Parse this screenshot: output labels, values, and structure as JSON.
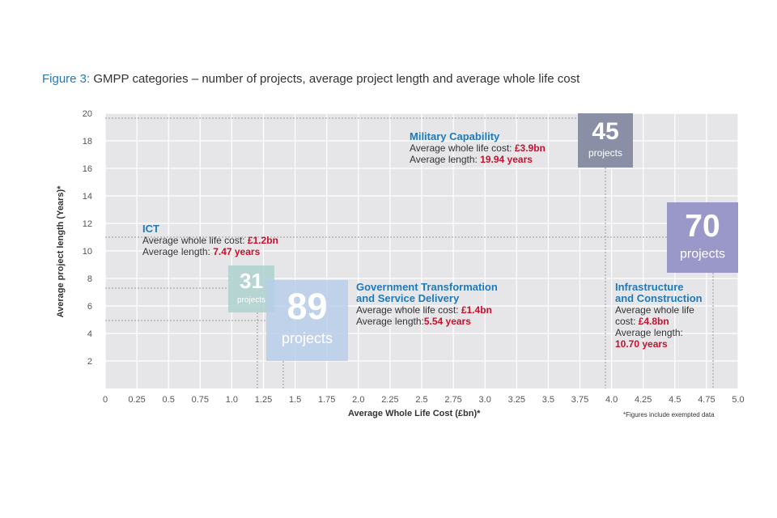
{
  "title": {
    "prefix": "Figure 3:",
    "text": " GMPP categories – number of projects, average project length and average whole life cost"
  },
  "footnote": "*Figures include exempted data",
  "chart_data": {
    "type": "scatter",
    "title": "Figure 3: GMPP categories – number of projects, average project length and average whole life cost",
    "xlabel": "Average Whole Life Cost (£bn)*",
    "ylabel": "Average project length (Years)*",
    "xlim": [
      0,
      5.0
    ],
    "ylim": [
      0,
      20
    ],
    "xticks": [
      "0",
      "0.25",
      "0.5",
      "0.75",
      "1.0",
      "1.25",
      "1.5",
      "1.75",
      "2.0",
      "2.25",
      "2.5",
      "2.75",
      "3.0",
      "3.25",
      "3.5",
      "3.75",
      "4.0",
      "4.25",
      "4.5",
      "4.75",
      "5.0"
    ],
    "yticks": [
      "2",
      "4",
      "6",
      "8",
      "10",
      "12",
      "14",
      "16",
      "18",
      "20"
    ],
    "grid": true,
    "series": [
      {
        "name": "Military Capability",
        "projects": "45",
        "unit": "projects",
        "cost": 3.9,
        "length": 19.94,
        "cost_label": "£3.9bn",
        "length_label": "19.94 years",
        "color": "#8a8fa6"
      },
      {
        "name": "Infrastructure and Construction",
        "projects": "70",
        "unit": "projects",
        "cost": 4.8,
        "length": 10.7,
        "cost_label": "£4.8bn",
        "length_label": "10.70 years",
        "color": "#9a98c8"
      },
      {
        "name": "ICT",
        "projects": "31",
        "unit": "projects",
        "cost": 1.2,
        "length": 7.47,
        "cost_label": "£1.2bn",
        "length_label": "7.47 years",
        "color": "#a9d0cc"
      },
      {
        "name": "Government Transformation and Service Delivery",
        "projects": "89",
        "unit": "projects",
        "cost": 1.4,
        "length": 5.54,
        "cost_label": "£1.4bn",
        "length_label": "5.54 years",
        "color": "#b7cde8"
      }
    ],
    "labels": {
      "cost_prefix": "Average whole life cost: ",
      "length_prefix": "Average length: ",
      "length_prefix_nospace": "Average length:",
      "cost_prefix_wrapped_1": "Average whole life",
      "cost_prefix_wrapped_2": "cost: ",
      "mil_name": "Military Capability",
      "ict_name": "ICT",
      "gov_name_1": "Government Transformation",
      "gov_name_2": "and Service Delivery",
      "inf_name_1": "Infrastructure",
      "inf_name_2": "and Construction"
    }
  }
}
